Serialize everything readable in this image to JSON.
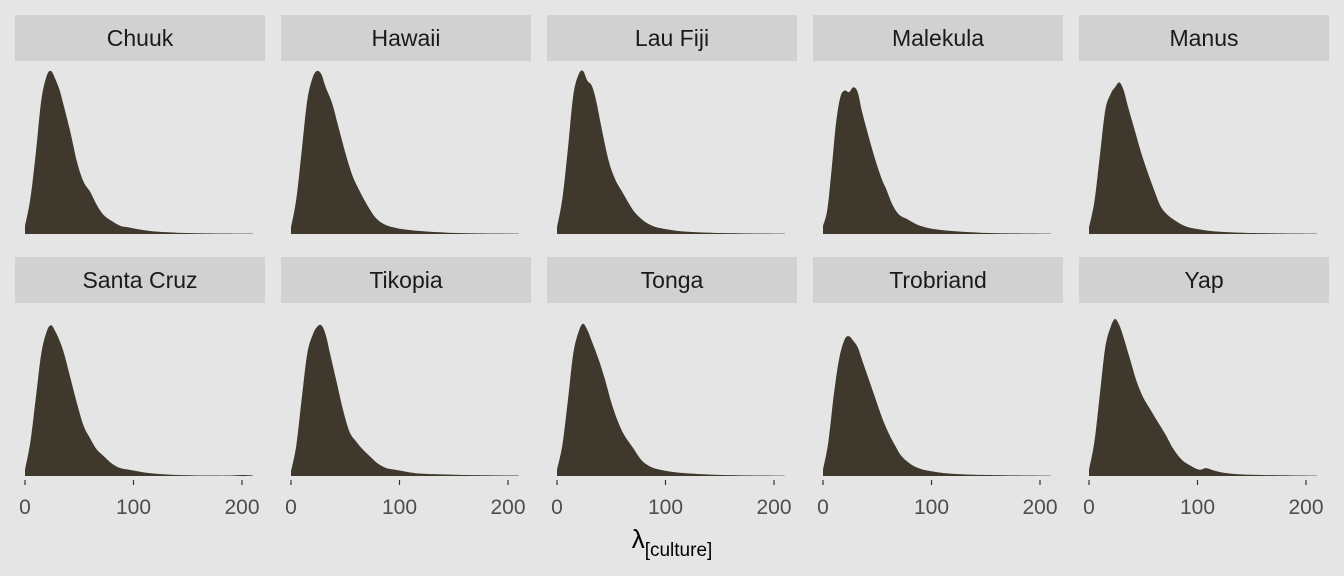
{
  "chart_data": {
    "type": "area",
    "facet_layout": {
      "rows": 2,
      "cols": 5
    },
    "xlim": [
      0,
      210
    ],
    "x_ticks": [
      0,
      100,
      200
    ],
    "x_tick_labels": [
      "0",
      "100",
      "200"
    ],
    "xlabel_main": "λ",
    "xlabel_sub": "[culture]",
    "fill_color": "#3e392c",
    "strip_color": "#d1d1d1",
    "panel_color": "#e5e5e5",
    "facets": [
      {
        "name": "Chuuk",
        "points": [
          [
            0,
            0.05
          ],
          [
            5,
            0.22
          ],
          [
            10,
            0.5
          ],
          [
            15,
            0.82
          ],
          [
            20,
            0.97
          ],
          [
            24,
            1.0
          ],
          [
            28,
            0.95
          ],
          [
            32,
            0.88
          ],
          [
            36,
            0.78
          ],
          [
            42,
            0.62
          ],
          [
            48,
            0.44
          ],
          [
            54,
            0.32
          ],
          [
            60,
            0.26
          ],
          [
            66,
            0.18
          ],
          [
            72,
            0.12
          ],
          [
            80,
            0.08
          ],
          [
            88,
            0.05
          ],
          [
            96,
            0.04
          ],
          [
            108,
            0.025
          ],
          [
            120,
            0.015
          ],
          [
            140,
            0.008
          ],
          [
            160,
            0.005
          ],
          [
            185,
            0.003
          ],
          [
            200,
            0.002
          ],
          [
            210,
            0.002
          ]
        ]
      },
      {
        "name": "Hawaii",
        "points": [
          [
            0,
            0.04
          ],
          [
            5,
            0.22
          ],
          [
            10,
            0.52
          ],
          [
            15,
            0.82
          ],
          [
            20,
            0.96
          ],
          [
            24,
            1.0
          ],
          [
            28,
            0.98
          ],
          [
            32,
            0.9
          ],
          [
            38,
            0.8
          ],
          [
            44,
            0.65
          ],
          [
            50,
            0.5
          ],
          [
            56,
            0.37
          ],
          [
            62,
            0.28
          ],
          [
            70,
            0.18
          ],
          [
            78,
            0.1
          ],
          [
            86,
            0.06
          ],
          [
            95,
            0.04
          ],
          [
            108,
            0.025
          ],
          [
            125,
            0.015
          ],
          [
            145,
            0.008
          ],
          [
            165,
            0.005
          ],
          [
            190,
            0.003
          ],
          [
            210,
            0.002
          ]
        ]
      },
      {
        "name": "Lau Fiji",
        "points": [
          [
            0,
            0.04
          ],
          [
            5,
            0.22
          ],
          [
            10,
            0.52
          ],
          [
            15,
            0.85
          ],
          [
            20,
            0.98
          ],
          [
            24,
            1.0
          ],
          [
            28,
            0.94
          ],
          [
            32,
            0.91
          ],
          [
            36,
            0.82
          ],
          [
            42,
            0.62
          ],
          [
            48,
            0.44
          ],
          [
            54,
            0.33
          ],
          [
            60,
            0.26
          ],
          [
            66,
            0.19
          ],
          [
            72,
            0.13
          ],
          [
            80,
            0.08
          ],
          [
            88,
            0.05
          ],
          [
            96,
            0.035
          ],
          [
            110,
            0.02
          ],
          [
            125,
            0.012
          ],
          [
            145,
            0.007
          ],
          [
            165,
            0.005
          ],
          [
            190,
            0.003
          ],
          [
            210,
            0.002
          ]
        ]
      },
      {
        "name": "Malekula",
        "points": [
          [
            0,
            0.05
          ],
          [
            4,
            0.15
          ],
          [
            8,
            0.4
          ],
          [
            12,
            0.68
          ],
          [
            16,
            0.84
          ],
          [
            20,
            0.88
          ],
          [
            24,
            0.87
          ],
          [
            28,
            0.9
          ],
          [
            32,
            0.87
          ],
          [
            36,
            0.75
          ],
          [
            42,
            0.6
          ],
          [
            48,
            0.46
          ],
          [
            54,
            0.34
          ],
          [
            58,
            0.28
          ],
          [
            64,
            0.18
          ],
          [
            70,
            0.12
          ],
          [
            78,
            0.09
          ],
          [
            86,
            0.06
          ],
          [
            95,
            0.04
          ],
          [
            108,
            0.025
          ],
          [
            125,
            0.015
          ],
          [
            145,
            0.008
          ],
          [
            165,
            0.005
          ],
          [
            190,
            0.003
          ],
          [
            210,
            0.002
          ]
        ]
      },
      {
        "name": "Manus",
        "points": [
          [
            0,
            0.04
          ],
          [
            5,
            0.2
          ],
          [
            10,
            0.48
          ],
          [
            15,
            0.76
          ],
          [
            20,
            0.86
          ],
          [
            24,
            0.9
          ],
          [
            28,
            0.93
          ],
          [
            32,
            0.88
          ],
          [
            36,
            0.78
          ],
          [
            42,
            0.64
          ],
          [
            48,
            0.5
          ],
          [
            54,
            0.38
          ],
          [
            60,
            0.27
          ],
          [
            66,
            0.17
          ],
          [
            72,
            0.12
          ],
          [
            80,
            0.08
          ],
          [
            88,
            0.05
          ],
          [
            96,
            0.035
          ],
          [
            110,
            0.02
          ],
          [
            125,
            0.012
          ],
          [
            145,
            0.007
          ],
          [
            165,
            0.005
          ],
          [
            190,
            0.003
          ],
          [
            210,
            0.002
          ]
        ]
      },
      {
        "name": "Santa Cruz",
        "points": [
          [
            0,
            0.04
          ],
          [
            5,
            0.22
          ],
          [
            10,
            0.5
          ],
          [
            15,
            0.78
          ],
          [
            20,
            0.92
          ],
          [
            24,
            0.96
          ],
          [
            28,
            0.92
          ],
          [
            32,
            0.86
          ],
          [
            36,
            0.78
          ],
          [
            42,
            0.62
          ],
          [
            48,
            0.46
          ],
          [
            54,
            0.32
          ],
          [
            60,
            0.24
          ],
          [
            66,
            0.17
          ],
          [
            72,
            0.13
          ],
          [
            80,
            0.08
          ],
          [
            88,
            0.05
          ],
          [
            96,
            0.04
          ],
          [
            108,
            0.025
          ],
          [
            120,
            0.015
          ],
          [
            135,
            0.008
          ],
          [
            150,
            0.005
          ],
          [
            170,
            0.003
          ],
          [
            190,
            0.003
          ],
          [
            200,
            0.006
          ],
          [
            210,
            0.003
          ]
        ]
      },
      {
        "name": "Tikopia",
        "points": [
          [
            0,
            0.03
          ],
          [
            5,
            0.2
          ],
          [
            10,
            0.5
          ],
          [
            15,
            0.78
          ],
          [
            20,
            0.9
          ],
          [
            24,
            0.95
          ],
          [
            28,
            0.96
          ],
          [
            32,
            0.9
          ],
          [
            36,
            0.78
          ],
          [
            42,
            0.6
          ],
          [
            48,
            0.42
          ],
          [
            54,
            0.28
          ],
          [
            60,
            0.22
          ],
          [
            66,
            0.17
          ],
          [
            72,
            0.13
          ],
          [
            80,
            0.08
          ],
          [
            88,
            0.05
          ],
          [
            96,
            0.04
          ],
          [
            108,
            0.025
          ],
          [
            120,
            0.015
          ],
          [
            140,
            0.01
          ],
          [
            160,
            0.006
          ],
          [
            185,
            0.004
          ],
          [
            210,
            0.003
          ]
        ]
      },
      {
        "name": "Tonga",
        "points": [
          [
            0,
            0.04
          ],
          [
            5,
            0.2
          ],
          [
            10,
            0.48
          ],
          [
            15,
            0.78
          ],
          [
            20,
            0.92
          ],
          [
            24,
            0.97
          ],
          [
            28,
            0.93
          ],
          [
            32,
            0.86
          ],
          [
            38,
            0.75
          ],
          [
            44,
            0.62
          ],
          [
            50,
            0.47
          ],
          [
            56,
            0.35
          ],
          [
            62,
            0.26
          ],
          [
            70,
            0.18
          ],
          [
            78,
            0.1
          ],
          [
            86,
            0.06
          ],
          [
            95,
            0.04
          ],
          [
            108,
            0.025
          ],
          [
            125,
            0.015
          ],
          [
            145,
            0.008
          ],
          [
            165,
            0.005
          ],
          [
            190,
            0.003
          ],
          [
            210,
            0.002
          ]
        ]
      },
      {
        "name": "Trobriand",
        "points": [
          [
            0,
            0.04
          ],
          [
            5,
            0.22
          ],
          [
            10,
            0.52
          ],
          [
            15,
            0.75
          ],
          [
            20,
            0.87
          ],
          [
            24,
            0.89
          ],
          [
            28,
            0.86
          ],
          [
            32,
            0.82
          ],
          [
            36,
            0.74
          ],
          [
            42,
            0.62
          ],
          [
            48,
            0.5
          ],
          [
            54,
            0.38
          ],
          [
            60,
            0.28
          ],
          [
            66,
            0.2
          ],
          [
            72,
            0.13
          ],
          [
            80,
            0.08
          ],
          [
            88,
            0.05
          ],
          [
            96,
            0.035
          ],
          [
            110,
            0.02
          ],
          [
            125,
            0.012
          ],
          [
            145,
            0.007
          ],
          [
            165,
            0.005
          ],
          [
            190,
            0.003
          ],
          [
            210,
            0.002
          ]
        ]
      },
      {
        "name": "Yap",
        "points": [
          [
            0,
            0.04
          ],
          [
            5,
            0.22
          ],
          [
            10,
            0.52
          ],
          [
            15,
            0.82
          ],
          [
            20,
            0.95
          ],
          [
            24,
            1.0
          ],
          [
            28,
            0.96
          ],
          [
            32,
            0.88
          ],
          [
            38,
            0.74
          ],
          [
            44,
            0.6
          ],
          [
            50,
            0.5
          ],
          [
            56,
            0.43
          ],
          [
            62,
            0.36
          ],
          [
            70,
            0.27
          ],
          [
            78,
            0.17
          ],
          [
            86,
            0.1
          ],
          [
            95,
            0.06
          ],
          [
            102,
            0.04
          ],
          [
            108,
            0.05
          ],
          [
            115,
            0.035
          ],
          [
            125,
            0.02
          ],
          [
            140,
            0.01
          ],
          [
            160,
            0.006
          ],
          [
            185,
            0.004
          ],
          [
            210,
            0.002
          ]
        ]
      }
    ]
  }
}
